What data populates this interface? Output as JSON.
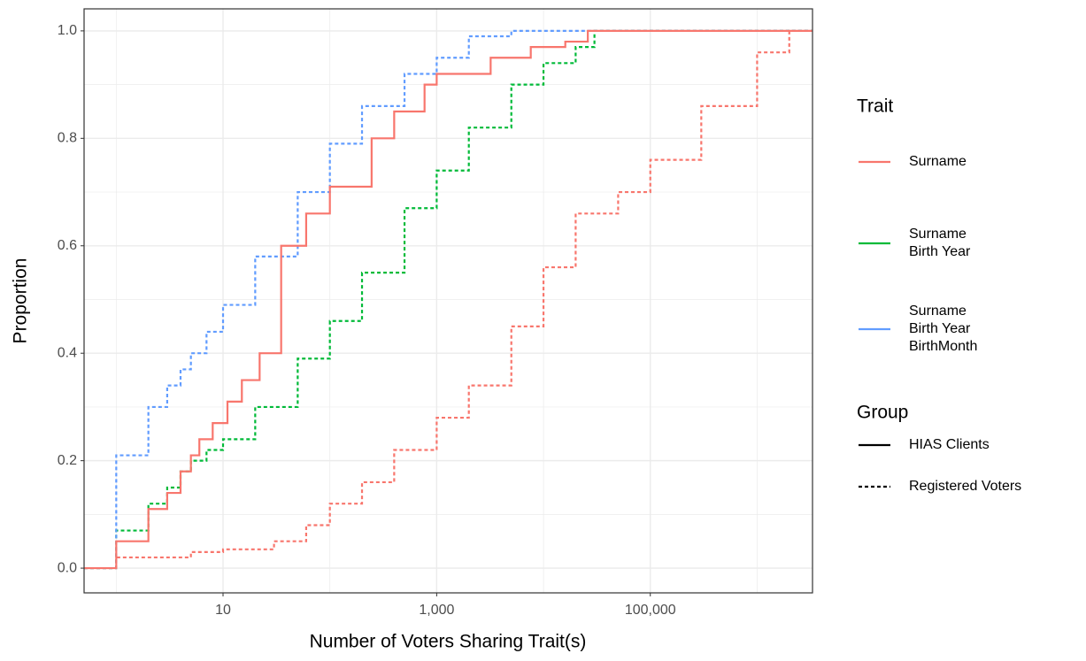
{
  "chart_data": {
    "type": "step",
    "xlabel": "Number of Voters Sharing Trait(s)",
    "ylabel": "Proportion",
    "xscale": "log",
    "xlim": [
      0.5,
      3300000
    ],
    "ylim": [
      -0.046,
      1.041
    ],
    "xticks": [
      10,
      {
        "value": 1000,
        "label": "1,000"
      },
      {
        "value": 100000,
        "label": "100,000"
      }
    ],
    "xminor": [
      1,
      100,
      10000,
      1000000
    ],
    "yticks": [
      {
        "value": 0,
        "label": "0.0"
      },
      {
        "value": 0.2,
        "label": "0.2"
      },
      {
        "value": 0.4,
        "label": "0.4"
      },
      {
        "value": 0.6,
        "label": "0.6"
      },
      {
        "value": 0.8,
        "label": "0.8"
      },
      {
        "value": 1,
        "label": "1.0"
      }
    ],
    "yminor": [
      0.1,
      0.3,
      0.5,
      0.7,
      0.9
    ],
    "grid": true,
    "legend": {
      "trait": {
        "title": "Trait",
        "items": [
          {
            "lines": [
              "Surname"
            ],
            "color": "#f8766d"
          },
          {
            "lines": [
              "Surname",
              "Birth Year"
            ],
            "color": "#00ba38"
          },
          {
            "lines": [
              "Surname",
              "Birth Year",
              "BirthMonth"
            ],
            "color": "#619cff"
          }
        ]
      },
      "group": {
        "title": "Group",
        "items": [
          {
            "name": "HIAS Clients",
            "dash": "solid"
          },
          {
            "name": "Registered Voters",
            "dash": "dotted"
          }
        ]
      }
    },
    "series": [
      {
        "color": "#f8766d",
        "dash": "dotted",
        "x": [
          0.5,
          1,
          5,
          10,
          30,
          60,
          100,
          200,
          400,
          1000,
          2000,
          5000,
          10000,
          20000,
          50000,
          100000,
          300000,
          1000000,
          2000000,
          3300000
        ],
        "values": [
          0,
          0.02,
          0.03,
          0.035,
          0.05,
          0.08,
          0.12,
          0.16,
          0.22,
          0.28,
          0.34,
          0.45,
          0.56,
          0.66,
          0.7,
          0.76,
          0.86,
          0.96,
          1,
          1
        ]
      },
      {
        "color": "#00ba38",
        "dash": "dotted",
        "x": [
          0.5,
          1,
          2,
          3,
          4,
          5,
          7,
          10,
          20,
          50,
          100,
          200,
          500,
          1000,
          2000,
          5000,
          10000,
          20000,
          30000,
          3300000
        ],
        "values": [
          0,
          0.07,
          0.12,
          0.15,
          0.18,
          0.2,
          0.22,
          0.24,
          0.3,
          0.39,
          0.46,
          0.55,
          0.67,
          0.74,
          0.82,
          0.9,
          0.94,
          0.97,
          1,
          1
        ]
      },
      {
        "color": "#619cff",
        "dash": "dotted",
        "x": [
          0.5,
          1,
          2,
          3,
          4,
          5,
          7,
          10,
          20,
          50,
          100,
          200,
          500,
          1000,
          2000,
          5000,
          3300000
        ],
        "values": [
          0,
          0.21,
          0.3,
          0.34,
          0.37,
          0.4,
          0.44,
          0.49,
          0.58,
          0.7,
          0.79,
          0.86,
          0.92,
          0.95,
          0.99,
          1,
          1
        ]
      },
      {
        "color": "#f8766d",
        "dash": "solid",
        "x": [
          0.5,
          1,
          2,
          3,
          4,
          5,
          6,
          8,
          11,
          15,
          22,
          35,
          60,
          100,
          246,
          400,
          770,
          1000,
          3200,
          7600,
          16000,
          26000,
          3300000
        ],
        "values": [
          0,
          0.05,
          0.11,
          0.14,
          0.18,
          0.21,
          0.24,
          0.27,
          0.31,
          0.35,
          0.4,
          0.6,
          0.66,
          0.71,
          0.8,
          0.85,
          0.9,
          0.92,
          0.95,
          0.97,
          0.98,
          1,
          1
        ]
      }
    ]
  }
}
